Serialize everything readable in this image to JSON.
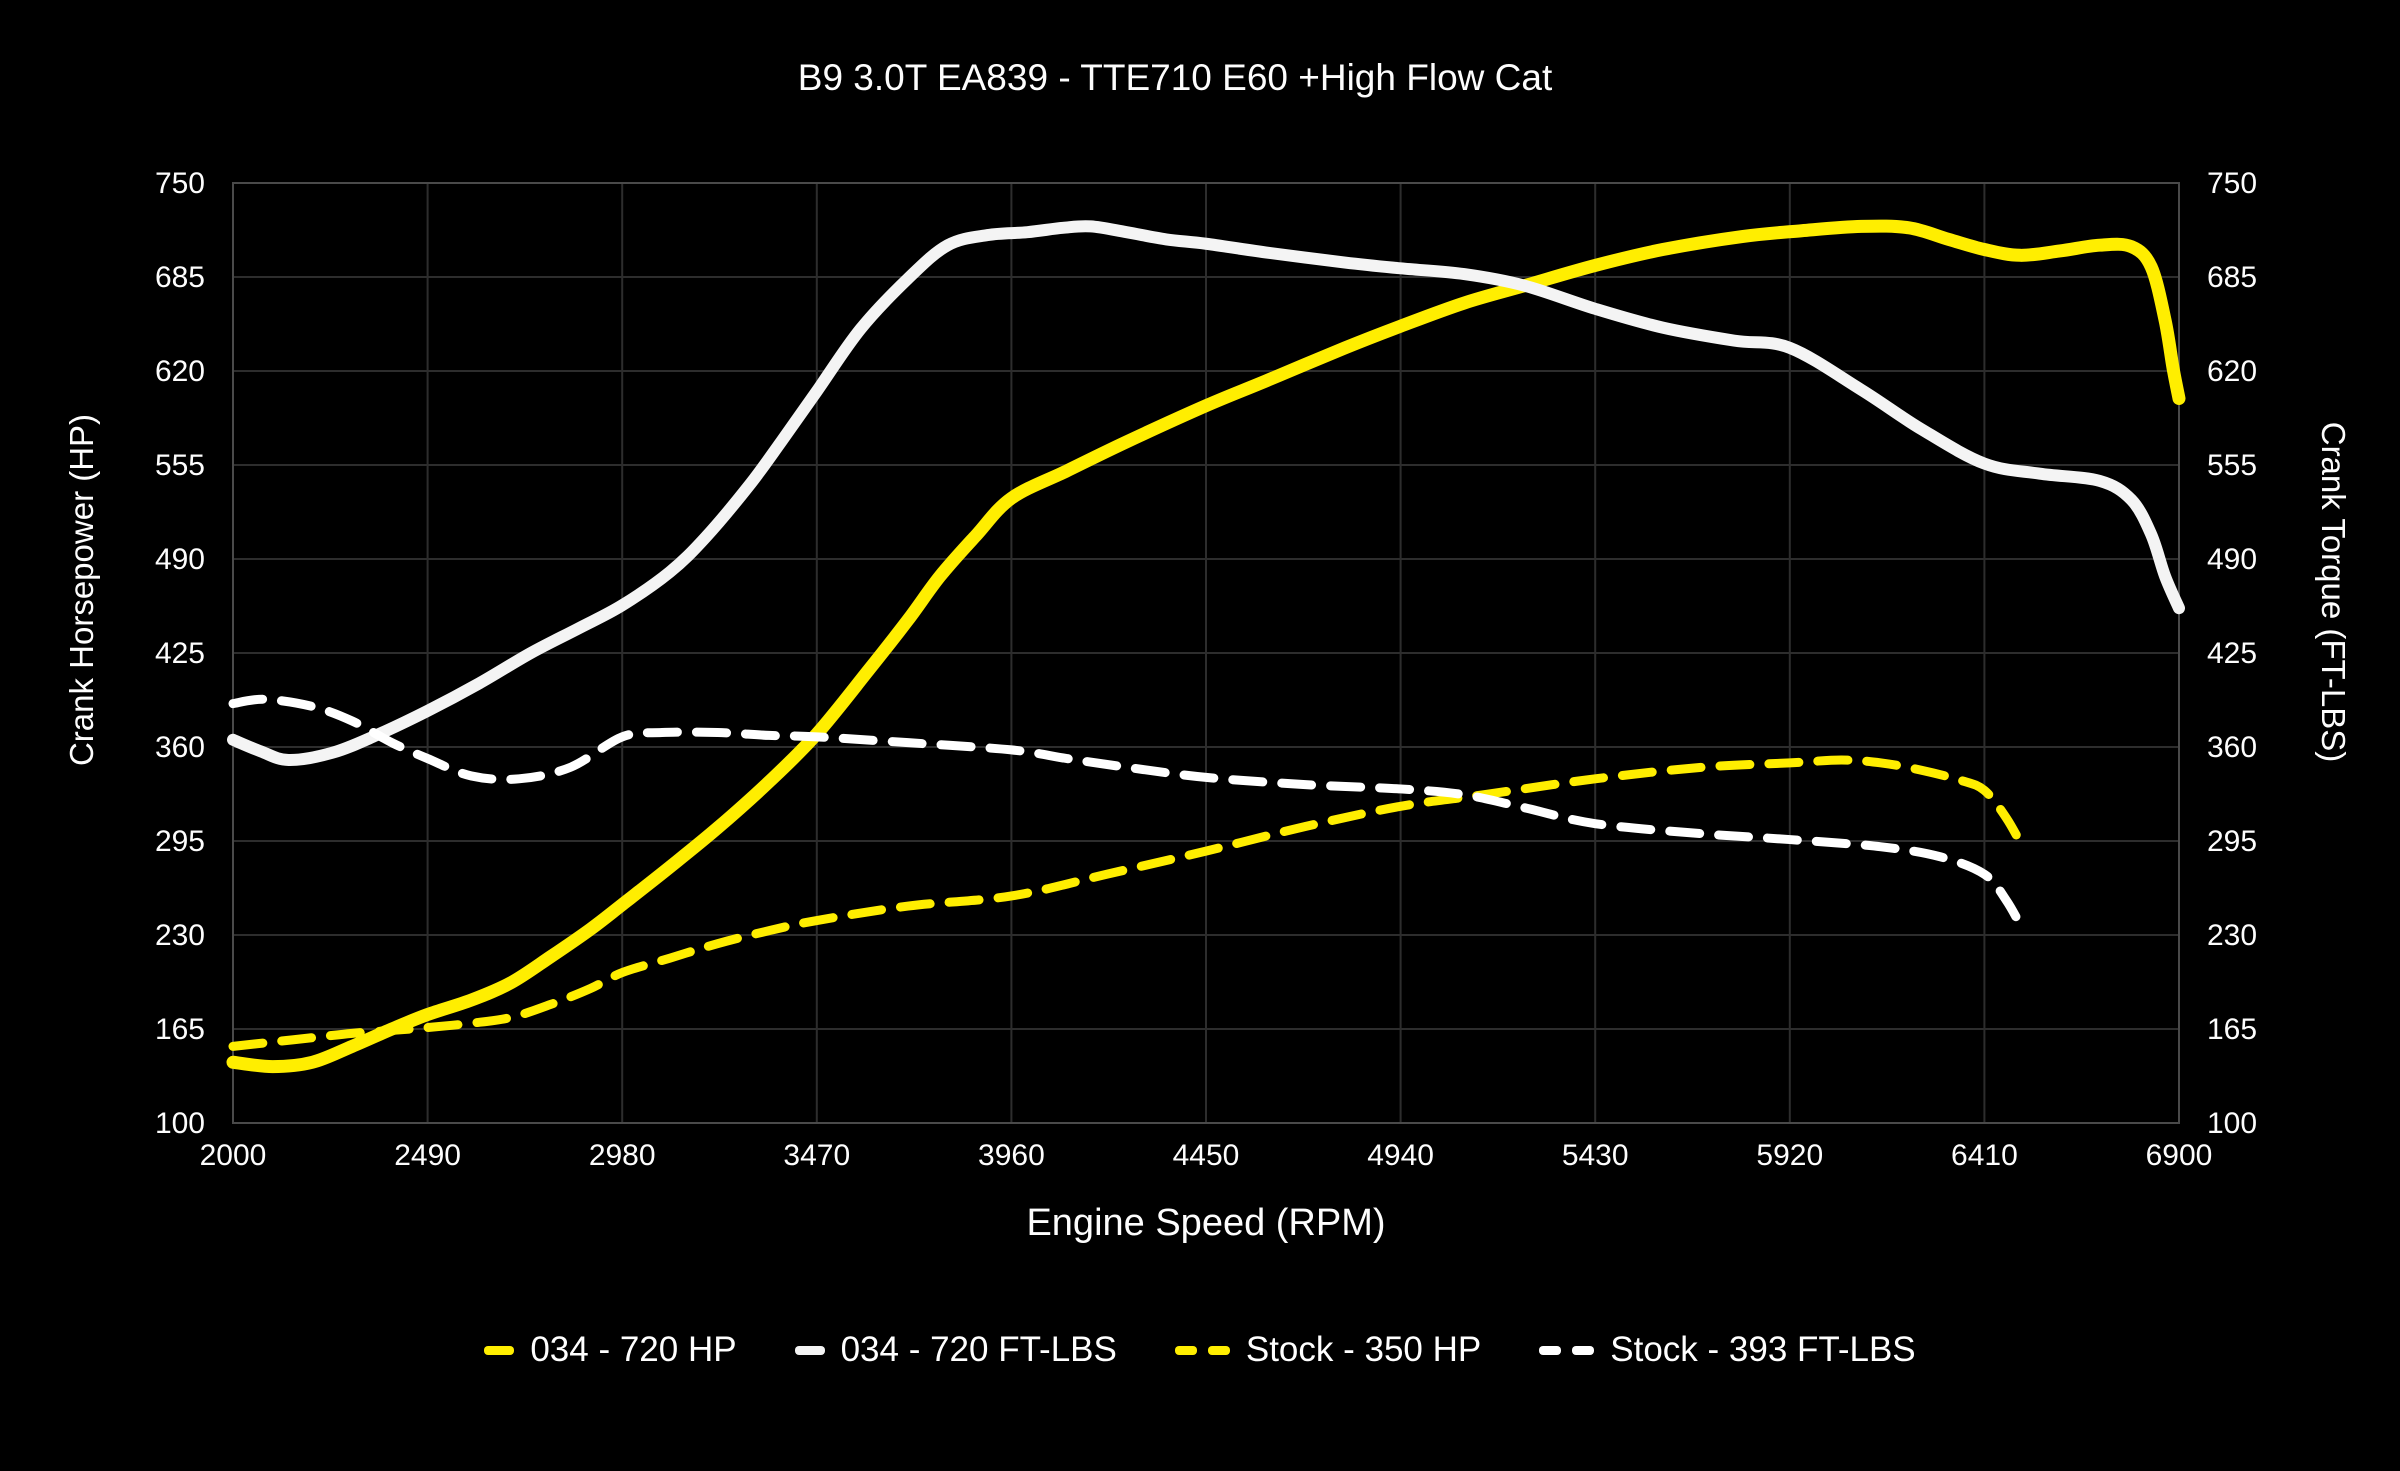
{
  "chart_data": {
    "type": "line",
    "title": "B9 3.0T EA839 - TTE710 E60 +High Flow Cat",
    "xlabel": "Engine Speed (RPM)",
    "ylabel_left": "Crank Horsepower (HP)",
    "ylabel_right": "Crank Torque (FT-LBS)",
    "xlim": [
      2000,
      6900
    ],
    "ylim": [
      100,
      750
    ],
    "x_ticks": [
      2000,
      2490,
      2980,
      3470,
      3960,
      4450,
      4940,
      5430,
      5920,
      6410,
      6900
    ],
    "y_ticks": [
      100,
      165,
      230,
      295,
      360,
      425,
      490,
      555,
      620,
      685,
      750
    ],
    "grid": true,
    "legend_position": "bottom",
    "colors": {
      "background": "#000000",
      "gridline": "#2d2d2d",
      "frame": "#4a4a4a",
      "accent_yellow": "#ffee00",
      "curve_white": "#f4f4f4",
      "text": "#ffffff"
    },
    "series": [
      {
        "name": "034 - 720 HP",
        "color": "#ffee00",
        "style": "solid",
        "width": 13,
        "points": [
          [
            2000,
            142
          ],
          [
            2100,
            139
          ],
          [
            2200,
            142
          ],
          [
            2300,
            153
          ],
          [
            2400,
            165
          ],
          [
            2490,
            175
          ],
          [
            2600,
            185
          ],
          [
            2700,
            197
          ],
          [
            2800,
            215
          ],
          [
            2900,
            234
          ],
          [
            2980,
            251
          ],
          [
            3100,
            277
          ],
          [
            3220,
            304
          ],
          [
            3350,
            336
          ],
          [
            3470,
            369
          ],
          [
            3600,
            413
          ],
          [
            3700,
            448
          ],
          [
            3780,
            478
          ],
          [
            3870,
            506
          ],
          [
            3960,
            532
          ],
          [
            4100,
            551
          ],
          [
            4250,
            571
          ],
          [
            4450,
            596
          ],
          [
            4600,
            613
          ],
          [
            4800,
            636
          ],
          [
            4940,
            651
          ],
          [
            5100,
            667
          ],
          [
            5252,
            679
          ],
          [
            5430,
            693
          ],
          [
            5600,
            704
          ],
          [
            5800,
            713
          ],
          [
            5950,
            717
          ],
          [
            6100,
            720
          ],
          [
            6220,
            719
          ],
          [
            6320,
            711
          ],
          [
            6410,
            704
          ],
          [
            6500,
            700
          ],
          [
            6600,
            703
          ],
          [
            6700,
            707
          ],
          [
            6780,
            706
          ],
          [
            6830,
            692
          ],
          [
            6865,
            655
          ],
          [
            6885,
            622
          ],
          [
            6900,
            601
          ]
        ]
      },
      {
        "name": "034 - 720 FT-LBS",
        "color": "#f4f4f4",
        "style": "solid",
        "width": 12,
        "points": [
          [
            2000,
            365
          ],
          [
            2070,
            357
          ],
          [
            2140,
            351
          ],
          [
            2250,
            356
          ],
          [
            2360,
            368
          ],
          [
            2490,
            385
          ],
          [
            2620,
            404
          ],
          [
            2750,
            425
          ],
          [
            2870,
            442
          ],
          [
            2980,
            458
          ],
          [
            3100,
            481
          ],
          [
            3190,
            505
          ],
          [
            3300,
            541
          ],
          [
            3380,
            571
          ],
          [
            3470,
            606
          ],
          [
            3580,
            649
          ],
          [
            3700,
            684
          ],
          [
            3800,
            707
          ],
          [
            3900,
            714
          ],
          [
            4000,
            716
          ],
          [
            4090,
            719
          ],
          [
            4160,
            720
          ],
          [
            4250,
            716
          ],
          [
            4350,
            711
          ],
          [
            4450,
            708
          ],
          [
            4600,
            702
          ],
          [
            4800,
            695
          ],
          [
            4940,
            691
          ],
          [
            5100,
            687
          ],
          [
            5252,
            679
          ],
          [
            5430,
            663
          ],
          [
            5600,
            650
          ],
          [
            5780,
            641
          ],
          [
            5920,
            636
          ],
          [
            6100,
            607
          ],
          [
            6250,
            580
          ],
          [
            6410,
            556
          ],
          [
            6550,
            549
          ],
          [
            6700,
            544
          ],
          [
            6780,
            531
          ],
          [
            6830,
            507
          ],
          [
            6865,
            478
          ],
          [
            6900,
            456
          ]
        ]
      },
      {
        "name": "Stock - 350 HP",
        "color": "#ffee00",
        "style": "dashed",
        "width": 9,
        "points": [
          [
            2000,
            153
          ],
          [
            2100,
            156
          ],
          [
            2200,
            159
          ],
          [
            2300,
            162
          ],
          [
            2400,
            164
          ],
          [
            2490,
            166
          ],
          [
            2600,
            169
          ],
          [
            2700,
            173
          ],
          [
            2800,
            182
          ],
          [
            2900,
            193
          ],
          [
            2980,
            204
          ],
          [
            3100,
            214
          ],
          [
            3220,
            224
          ],
          [
            3350,
            233
          ],
          [
            3470,
            240
          ],
          [
            3700,
            250
          ],
          [
            3960,
            257
          ],
          [
            4200,
            272
          ],
          [
            4450,
            288
          ],
          [
            4700,
            305
          ],
          [
            4940,
            319
          ],
          [
            5150,
            327
          ],
          [
            5430,
            338
          ],
          [
            5700,
            346
          ],
          [
            5920,
            349
          ],
          [
            6050,
            351
          ],
          [
            6150,
            349
          ],
          [
            6250,
            344
          ],
          [
            6350,
            337
          ],
          [
            6410,
            330
          ],
          [
            6465,
            311
          ],
          [
            6510,
            289
          ]
        ]
      },
      {
        "name": "Stock - 393 FT-LBS",
        "color": "#ffffff",
        "style": "dashed",
        "width": 9,
        "points": [
          [
            2000,
            390
          ],
          [
            2080,
            393
          ],
          [
            2200,
            388
          ],
          [
            2300,
            378
          ],
          [
            2400,
            363
          ],
          [
            2490,
            352
          ],
          [
            2600,
            340
          ],
          [
            2720,
            338
          ],
          [
            2850,
            346
          ],
          [
            2980,
            367
          ],
          [
            3080,
            370
          ],
          [
            3220,
            370
          ],
          [
            3350,
            368
          ],
          [
            3470,
            367
          ],
          [
            3700,
            363
          ],
          [
            3960,
            358
          ],
          [
            4100,
            352
          ],
          [
            4250,
            346
          ],
          [
            4450,
            339
          ],
          [
            4700,
            334
          ],
          [
            4940,
            331
          ],
          [
            5100,
            327
          ],
          [
            5252,
            318
          ],
          [
            5430,
            307
          ],
          [
            5700,
            300
          ],
          [
            5920,
            296
          ],
          [
            6150,
            291
          ],
          [
            6300,
            284
          ],
          [
            6410,
            272
          ],
          [
            6465,
            254
          ],
          [
            6510,
            232
          ]
        ]
      }
    ]
  }
}
